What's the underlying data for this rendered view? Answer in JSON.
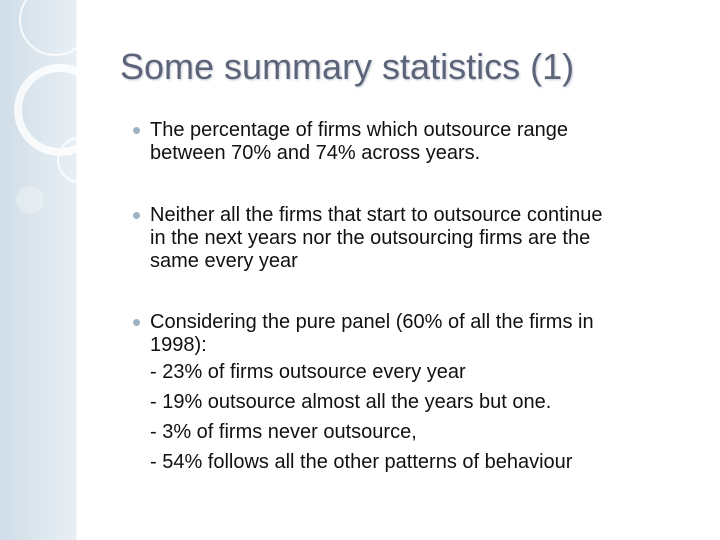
{
  "title": "Some summary statistics (1)",
  "bullets": [
    {
      "lines": [
        "The percentage of firms which outsource range",
        "between 70% and 74% across years."
      ]
    },
    {
      "lines": [
        "Neither all the firms that start to outsource continue",
        "in the next years nor the outsourcing firms are the",
        "same every year"
      ]
    },
    {
      "lines": [
        "Considering the pure panel (60% of all the firms in",
        "1998):",
        "- 23% of firms outsource every year",
        "- 19% outsource almost all the years but one.",
        "- 3% of firms never outsource,",
        "- 54% follows all the other patterns of behaviour"
      ]
    }
  ]
}
